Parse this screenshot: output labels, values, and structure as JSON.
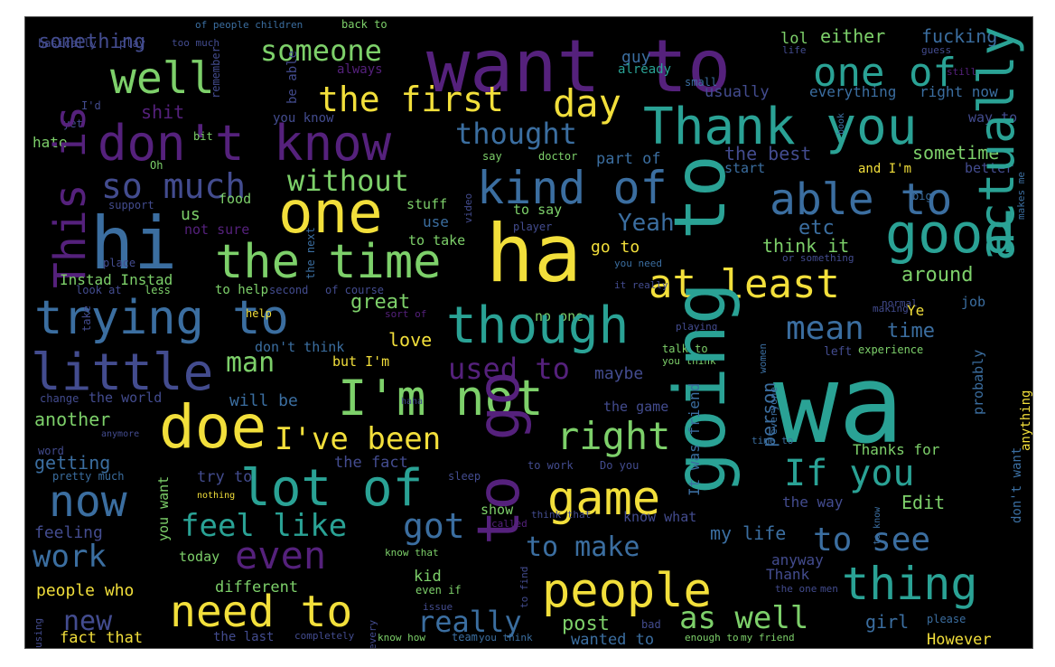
{
  "palette": {
    "background": "#000000",
    "frame": "#555555",
    "yellow": "#f2df3b",
    "green": "#7dd06a",
    "teal": "#2aa295",
    "blue": "#3b6ea0",
    "indigo": "#434c8f",
    "purple": "#55217c"
  },
  "words": [
    "something",
    "of people children",
    "back to",
    "basically",
    "play",
    "too much",
    "want to",
    "lol",
    "either",
    "fucking",
    "life",
    "guess",
    "someone",
    "guy",
    "one of",
    "still",
    "well",
    "always",
    "already",
    "small",
    "the first",
    "day",
    "usually",
    "everything",
    "right now",
    "I'd",
    "shit",
    "you know",
    "be able",
    "Thank you",
    "way to",
    "yet",
    "remember",
    "don't know",
    "thought",
    "hate",
    "bit",
    "say",
    "doctor",
    "part of",
    "Oh",
    "the best",
    "sometime",
    "start",
    "and I'm",
    "better",
    "so much",
    "without",
    "kind of",
    "book",
    "able to",
    "big",
    "This is",
    "support",
    "food",
    "stuff",
    "video",
    "us",
    "one",
    "to say",
    "player",
    "use",
    "hi",
    "not sure",
    "etc",
    "good",
    "the time",
    "ha",
    "Yeah",
    "to take",
    "think it",
    "place",
    "the next",
    "go to",
    "or something",
    "makes me",
    "Instad Instad",
    "you need",
    "at least",
    "around",
    "look at",
    "less",
    "to help",
    "second",
    "of course",
    "it really",
    "normal",
    "job",
    "trying to",
    "great",
    "making",
    "Ye",
    "sort of",
    "no one",
    "playing",
    "though",
    "help",
    "take",
    "mean",
    "time",
    "actually",
    "don't think",
    "love",
    "left",
    "experience",
    "women",
    "little",
    "man",
    "but I'm",
    "talk to",
    "you think",
    "used to",
    "wa",
    "maybe",
    "I'm not",
    "going to",
    "change",
    "the world",
    "will be",
    "haha",
    "It was friend",
    "person",
    "the game",
    "everyone",
    "probably",
    "another",
    "doe",
    "I've been",
    "right",
    "anything",
    "time to",
    "anymore",
    "word",
    "getting",
    "the fact",
    "to go",
    "to work",
    "Do you",
    "Thanks for",
    "pretty much",
    "try to",
    "lot of",
    "If you",
    "sleep",
    "don't want",
    "game",
    "now",
    "you want",
    "nothing",
    "show",
    "called",
    "the way",
    "Edit",
    "think that",
    "to know",
    "feeling",
    "feel like",
    "got",
    "know what",
    "my life",
    "to see",
    "work",
    "even",
    "to make",
    "anyway",
    "today",
    "know that",
    "kid",
    "Thank",
    "thing",
    "people",
    "the one",
    "men",
    "different",
    "people who",
    "to find",
    "even if",
    "need to",
    "new",
    "every",
    "issue",
    "really",
    "you think",
    "post",
    "bad",
    "as well",
    "girl",
    "please",
    "using",
    "fact that",
    "the last",
    "completely",
    "know how",
    "team",
    "wanted to",
    "enough to",
    "my friend",
    "However"
  ]
}
